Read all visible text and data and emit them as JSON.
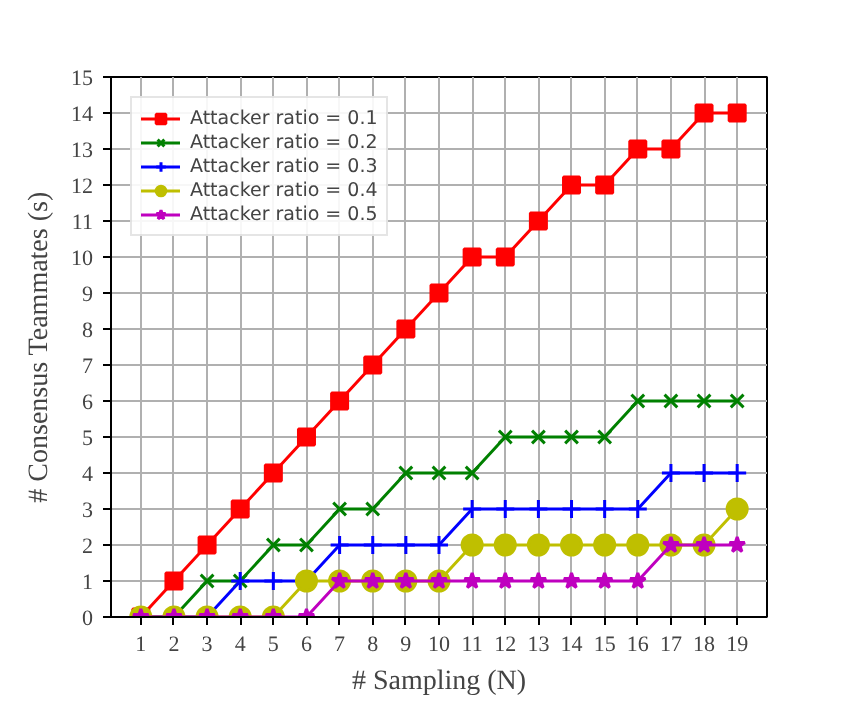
{
  "chart_data": {
    "type": "line",
    "xlabel": "# Sampling (N)",
    "ylabel": "# Consensus Teammates (s)",
    "x": [
      1,
      2,
      3,
      4,
      5,
      6,
      7,
      8,
      9,
      10,
      11,
      12,
      13,
      14,
      15,
      16,
      17,
      18,
      19
    ],
    "xlim": [
      0.1,
      19.9
    ],
    "ylim": [
      0,
      15
    ],
    "xticks": [
      1,
      2,
      3,
      4,
      5,
      6,
      7,
      8,
      9,
      10,
      11,
      12,
      13,
      14,
      15,
      16,
      17,
      18,
      19
    ],
    "yticks": [
      0,
      1,
      2,
      3,
      4,
      5,
      6,
      7,
      8,
      9,
      10,
      11,
      12,
      13,
      14,
      15
    ],
    "grid": true,
    "legend": "top left",
    "series": [
      {
        "name": "Attacker ratio = 0.1",
        "color": "#ff0000",
        "marker": "square",
        "values": [
          0,
          1,
          2,
          3,
          4,
          5,
          6,
          7,
          8,
          9,
          10,
          10,
          11,
          12,
          12,
          13,
          13,
          14,
          14
        ]
      },
      {
        "name": "Attacker ratio = 0.2",
        "color": "#008000",
        "marker": "cross",
        "values": [
          0,
          0,
          1,
          1,
          2,
          2,
          3,
          3,
          4,
          4,
          4,
          5,
          5,
          5,
          5,
          6,
          6,
          6,
          6
        ]
      },
      {
        "name": "Attacker ratio = 0.3",
        "color": "#0000ff",
        "marker": "plus",
        "values": [
          0,
          0,
          0,
          1,
          1,
          1,
          2,
          2,
          2,
          2,
          3,
          3,
          3,
          3,
          3,
          3,
          4,
          4,
          4
        ]
      },
      {
        "name": "Attacker ratio = 0.4",
        "color": "#bfbf00",
        "marker": "circle",
        "values": [
          0,
          0,
          0,
          0,
          0,
          1,
          1,
          1,
          1,
          1,
          2,
          2,
          2,
          2,
          2,
          2,
          2,
          2,
          3
        ]
      },
      {
        "name": "Attacker ratio = 0.5",
        "color": "#bf00bf",
        "marker": "star",
        "values": [
          0,
          0,
          0,
          0,
          0,
          0,
          1,
          1,
          1,
          1,
          1,
          1,
          1,
          1,
          1,
          1,
          2,
          2,
          2
        ]
      }
    ]
  }
}
